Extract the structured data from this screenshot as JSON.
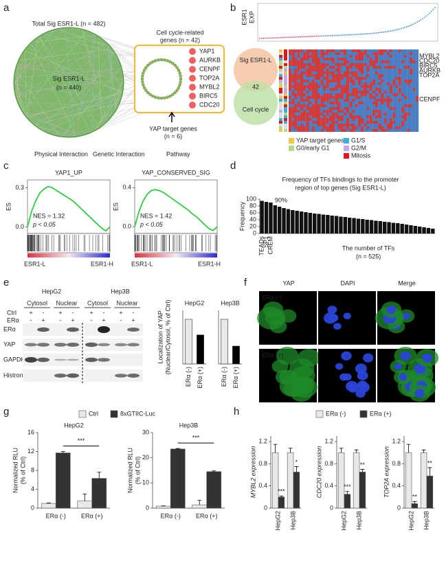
{
  "panel_labels": [
    "a",
    "b",
    "c",
    "d",
    "e",
    "f",
    "g",
    "h"
  ],
  "panel_a": {
    "total": "Total Sig ESR1-L (n = 482)",
    "circle_title": "Sig ESR1-L",
    "circle_n": "(n = 440)",
    "cell_cycle": [
      "Cell cycle-related",
      "genes (n = 42)"
    ],
    "genes": [
      "YAP1",
      "AURKB",
      "CENPF",
      "TOP2A",
      "MYBL2",
      "BIRC5",
      "CDC20"
    ],
    "yap_targets": [
      "YAP target genes",
      "(n = 6)"
    ],
    "legend": [
      {
        "label": "Physical Interaction",
        "color": "#e040a0"
      },
      {
        "label": "Genetic Interaction",
        "color": "#9ccc65"
      },
      {
        "label": "Pathway",
        "color": "#4a90d9"
      }
    ]
  },
  "panel_b": {
    "axis_label": [
      "ESR1",
      "EXP"
    ],
    "venn": [
      "Sig ESR1-L",
      "42",
      "Cell cycle"
    ],
    "genes": [
      "MYBL2",
      "CDC20",
      "BIRC5",
      "AURKB",
      "TOP2A",
      "CENPF"
    ],
    "legend": [
      {
        "label": "YAP target genes",
        "color": "#f5c542"
      },
      {
        "label": "G0/early G1",
        "color": "#b5d98a"
      },
      {
        "label": "G1/S",
        "color": "#3ab0e0"
      },
      {
        "label": "G2/M",
        "color": "#c9a6e8"
      },
      {
        "label": "Mitosis",
        "color": "#e01818"
      }
    ]
  },
  "panel_e": {
    "cells": [
      "HepG2",
      "Hep3B"
    ],
    "fractions": [
      "Cytosol",
      "Nuclear",
      "Cytosol",
      "Nuclear"
    ],
    "rows": [
      "Ctrl",
      "ERα"
    ],
    "ctrl_signs": [
      "+",
      "-",
      "+",
      "-",
      "+",
      "-",
      "+",
      "-"
    ],
    "era_signs": [
      "-",
      "+",
      "-",
      "+",
      "-",
      "+",
      "-",
      "+"
    ],
    "proteins": [
      "ERα",
      "YAP",
      "GAPDH",
      "Histron H3"
    ]
  },
  "panel_f": {
    "columns": [
      "YAP",
      "DAPI",
      "Merge"
    ],
    "rows": [
      "ERα (-)",
      "ERα (+)"
    ]
  },
  "chart_data": [
    {
      "type": "line",
      "title": "YAP1_UP",
      "ylabel": "ES",
      "values": [
        0,
        0.12,
        0.2,
        0.26,
        0.29,
        0.31,
        0.3,
        0.28,
        0.26,
        0.24,
        0.22,
        0.2,
        0.17,
        0.14,
        0.11,
        0.08,
        0.05,
        0.02,
        -0.01,
        -0.03,
        0.0
      ],
      "color": "#2ecc40",
      "ylim": [
        -0.05,
        0.36
      ],
      "yticks": [
        {
          "value": 0,
          "label": "0.0"
        },
        0.3
      ],
      "nes": "NES = 1.32",
      "pvalue": "p < 0.05",
      "xlabels": [
        "ESR1-L",
        "ESR1-H"
      ]
    },
    {
      "type": "line",
      "title": "YAP_CONSERVED_SIG",
      "ylabel": "ES",
      "values": [
        0,
        0.15,
        0.26,
        0.33,
        0.37,
        0.38,
        0.37,
        0.35,
        0.32,
        0.29,
        0.26,
        0.23,
        0.2,
        0.17,
        0.13,
        0.1,
        0.06,
        0.02,
        -0.02,
        -0.04,
        0.0
      ],
      "color": "#2ecc40",
      "ylim": [
        -0.07,
        0.48
      ],
      "yticks": [
        {
          "value": 0,
          "label": "0.0"
        },
        0.4
      ],
      "nes": "NES = 1.42",
      "pvalue": "p < 0.05",
      "xlabels": [
        "ESR1-L",
        "ESR1-H"
      ]
    },
    {
      "type": "bar",
      "title": [
        "Frequency of TFs bindings to the promoter",
        "region of top genes (Sig ESR1-L)"
      ],
      "ylabel": "Frequency",
      "xlabel": [
        "The number of TFs",
        "(n = 525)"
      ],
      "annotation": "90%",
      "categories": [
        "TEADs",
        "SP1",
        "CREM",
        null,
        null,
        null,
        null,
        null,
        null,
        null,
        null,
        null,
        null,
        null,
        null,
        null,
        null,
        null,
        null,
        null,
        null,
        null,
        null,
        null,
        null,
        null,
        null,
        null,
        null,
        null,
        null,
        null,
        null,
        null,
        null,
        null,
        null,
        null,
        null,
        null
      ],
      "values": [
        95,
        92,
        90,
        82,
        78,
        74,
        71,
        68,
        66,
        64,
        62,
        60,
        58,
        57,
        55,
        54,
        52,
        51,
        49,
        48,
        46,
        45,
        43,
        42,
        40,
        39,
        37,
        36,
        34,
        33,
        31,
        30,
        28,
        26,
        24,
        22,
        20,
        18,
        16,
        14
      ],
      "color": "#111111",
      "ylim": [
        0,
        100
      ],
      "yticks": [
        0,
        20,
        40,
        60,
        80,
        100
      ]
    },
    {
      "type": "bar",
      "title": "HepG2",
      "ylabel": [
        "Localization of YAP",
        "(Nuclear/Cytosol, % of Ctrl)"
      ],
      "categories": [
        "ERα (-)",
        "ERα (+)"
      ],
      "values": [
        1.0,
        0.65
      ],
      "colors": [
        "#e8e8e8",
        "#000000"
      ],
      "ylim": [
        0,
        1.2
      ]
    },
    {
      "type": "bar",
      "title": "Hep3B",
      "categories": [
        "ERα (-)",
        "ERα (+)"
      ],
      "values": [
        1.0,
        0.4
      ],
      "colors": [
        "#e8e8e8",
        "#000000"
      ],
      "ylim": [
        0,
        1.2
      ]
    },
    {
      "type": "bar",
      "title": "HepG2",
      "ylabel": [
        "Normalized RLU",
        "(% of Ctrl)"
      ],
      "categories": [
        "ERα (-)",
        "ERα (+)"
      ],
      "series": [
        {
          "name": "Ctrl",
          "color": "#e8e8e8",
          "values": [
            1.0,
            1.5
          ],
          "errors": [
            0.1,
            1.5
          ]
        },
        {
          "name": "8xGTIIC-Luc",
          "color": "#333333",
          "values": [
            11.7,
            6.3
          ],
          "errors": [
            0.3,
            1.3
          ]
        }
      ],
      "ylim": [
        0,
        16
      ],
      "yticks": [
        0,
        4,
        8,
        12,
        16
      ],
      "significance": "***"
    },
    {
      "type": "bar",
      "title": "Hep3B",
      "ylabel": [
        "Normalized RLU",
        "(% of Ctrl)"
      ],
      "categories": [
        "ERα (-)",
        "ERα (+)"
      ],
      "series": [
        {
          "color": "#e8e8e8",
          "values": [
            0.8,
            1.3
          ],
          "errors": [
            0.1,
            1.8
          ]
        },
        {
          "color": "#333333",
          "values": [
            23.5,
            14.5
          ],
          "errors": [
            0.2,
            0.3
          ]
        }
      ],
      "ylim": [
        0,
        30
      ],
      "yticks": [
        0,
        10,
        20,
        30
      ],
      "significance": "***"
    },
    {
      "type": "bar",
      "ylabel": "MYBL2 expression",
      "categories": [
        "HepG2",
        "Hep3B"
      ],
      "series": [
        {
          "name": "ERα (-)",
          "color": "#e8e8e8",
          "values": [
            1.0,
            1.0
          ],
          "errors": [
            0.15,
            0.08
          ]
        },
        {
          "name": "ERα (+)",
          "color": "#333333",
          "values": [
            0.2,
            0.65
          ],
          "errors": [
            0.02,
            0.1
          ],
          "significance": [
            "***",
            "*"
          ]
        }
      ],
      "ylim": [
        0,
        1.3
      ],
      "yticks": [
        0,
        0.4,
        0.8,
        1.2
      ]
    },
    {
      "type": "bar",
      "ylabel": "CDC20 expression",
      "categories": [
        "HepG2",
        "Hep3B"
      ],
      "series": [
        {
          "color": "#e8e8e8",
          "values": [
            1.0,
            1.0
          ],
          "errors": [
            0.08,
            0.05
          ]
        },
        {
          "color": "#333333",
          "values": [
            0.25,
            0.65
          ],
          "errors": [
            0.05,
            0.05
          ],
          "significance": [
            "***",
            "**"
          ]
        }
      ],
      "ylim": [
        0,
        1.3
      ],
      "yticks": [
        0,
        0.4,
        0.8,
        1.2
      ]
    },
    {
      "type": "bar",
      "ylabel": "TOP2A expression",
      "categories": [
        "HepG2",
        "Hep3B"
      ],
      "series": [
        {
          "color": "#e8e8e8",
          "values": [
            1.0,
            1.0
          ],
          "errors": [
            0.15,
            0.05
          ]
        },
        {
          "color": "#333333",
          "values": [
            0.08,
            0.58
          ],
          "errors": [
            0.04,
            0.15
          ],
          "significance": [
            "**",
            "**"
          ]
        }
      ],
      "ylim": [
        0,
        1.3
      ],
      "yticks": [
        0,
        0.4,
        0.8,
        1.2
      ]
    }
  ]
}
